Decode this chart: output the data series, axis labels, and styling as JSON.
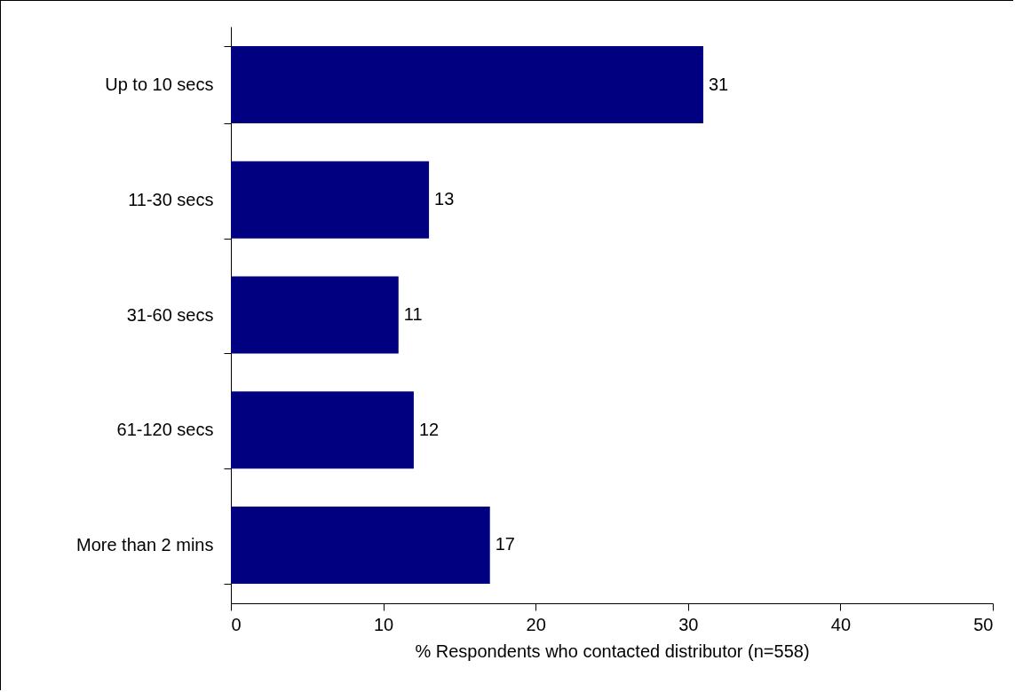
{
  "chart_data": {
    "type": "bar",
    "orientation": "horizontal",
    "xlabel": "% Respondents who contacted distributor (n=558)",
    "categories": [
      "Up to 10 secs",
      "11-30 secs",
      "31-60 secs",
      "61-120 secs",
      "More than 2 mins"
    ],
    "values": [
      31,
      13,
      11,
      12,
      17
    ],
    "color": "#000080",
    "data_labels": true,
    "xlim": [
      0,
      50
    ],
    "xticks": [
      0,
      10,
      20,
      30,
      40,
      50
    ],
    "grid": false
  }
}
